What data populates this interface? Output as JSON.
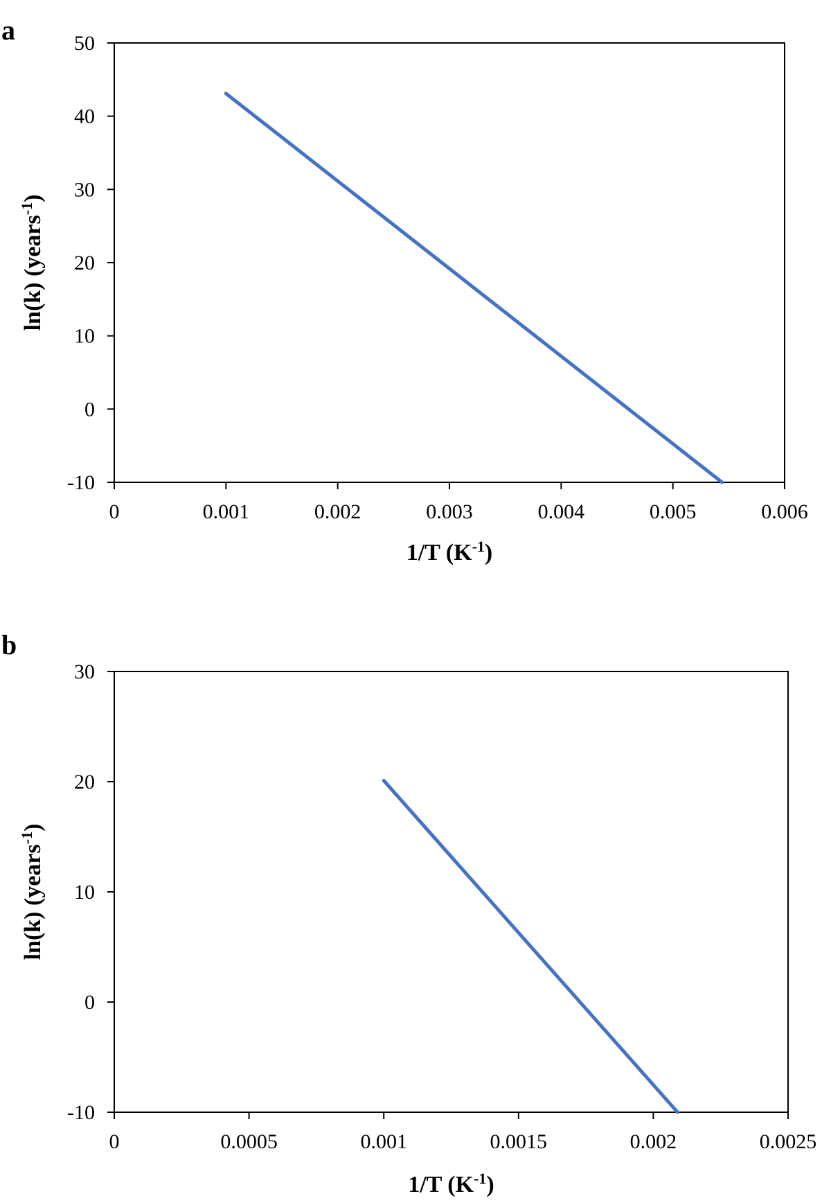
{
  "chart_data": [
    {
      "panel_label": "a",
      "type": "line",
      "xlabel": {
        "main": "1/T (K",
        "sup": "-1",
        "end": ")"
      },
      "ylabel": {
        "main": "ln(k) (years",
        "sup": "-1",
        "end": ")"
      },
      "xlim": [
        0,
        0.006
      ],
      "ylim": [
        -10,
        50
      ],
      "x_ticks": [
        0,
        0.001,
        0.002,
        0.003,
        0.004,
        0.005,
        0.006
      ],
      "x_tick_labels": [
        "0",
        "0.001",
        "0.002",
        "0.003",
        "0.004",
        "0.005",
        "0.006"
      ],
      "y_ticks": [
        -10,
        0,
        10,
        20,
        30,
        40,
        50
      ],
      "y_tick_labels": [
        "-10",
        "0",
        "10",
        "20",
        "30",
        "40",
        "50"
      ],
      "grid": false,
      "series": [
        {
          "color": "#4472C4",
          "x": [
            0.001,
            0.00544
          ],
          "y": [
            43.1,
            -10
          ]
        }
      ]
    },
    {
      "panel_label": "b",
      "type": "line",
      "xlabel": {
        "main": "1/T (K",
        "sup": "-1",
        "end": ")"
      },
      "ylabel": {
        "main": "ln(k) (years",
        "sup": "-1",
        "end": ")"
      },
      "xlim": [
        0,
        0.0025
      ],
      "ylim": [
        -10,
        30
      ],
      "x_ticks": [
        0,
        0.0005,
        0.001,
        0.0015,
        0.002,
        0.0025
      ],
      "x_tick_labels": [
        "0",
        "0.0005",
        "0.001",
        "0.0015",
        "0.002",
        "0.0025"
      ],
      "y_ticks": [
        -10,
        0,
        10,
        20,
        30
      ],
      "y_tick_labels": [
        "-10",
        "0",
        "10",
        "20",
        "30"
      ],
      "grid": false,
      "series": [
        {
          "color": "#4472C4",
          "x": [
            0.001,
            0.00209
          ],
          "y": [
            20.1,
            -10
          ]
        }
      ]
    }
  ]
}
